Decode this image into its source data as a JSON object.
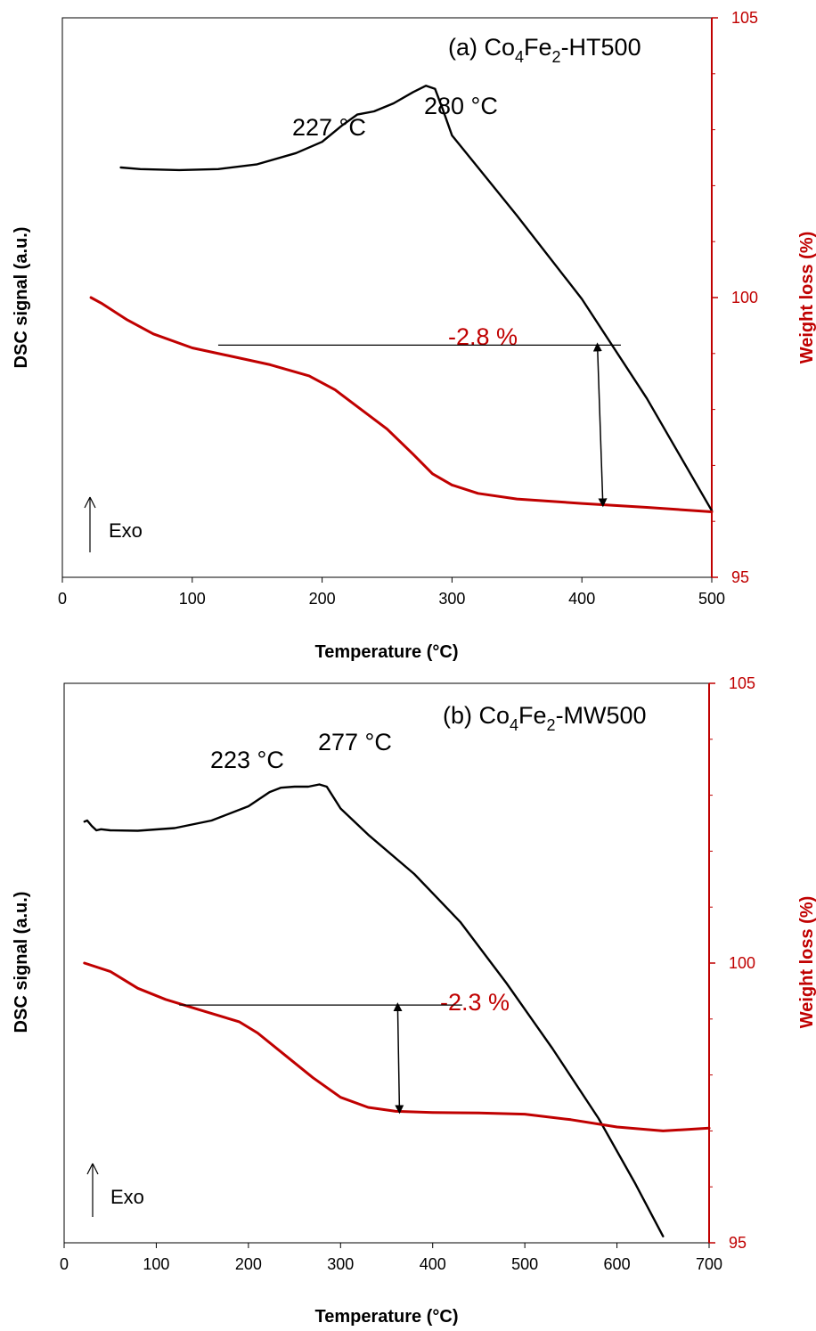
{
  "colors": {
    "dsc": "#000000",
    "weight": "#c00000"
  },
  "chart_data": [
    {
      "type": "line",
      "title": "(a) Co4Fe2-HT500",
      "title_parts": {
        "pre": "(a) Co",
        "sub1": "4",
        "mid": "Fe",
        "sub2": "2",
        "post": "-HT500"
      },
      "xlabel": "Temperature (°C)",
      "ylabel_left": "DSC signal (a.u.)",
      "ylabel_right": "Weight loss (%)",
      "xlim": [
        0,
        500
      ],
      "xticks": [
        "0",
        "100",
        "200",
        "300",
        "400",
        "500"
      ],
      "y2lim": [
        95,
        105
      ],
      "y2ticks": [
        "95",
        "100",
        "105"
      ],
      "exo_label": "Exo",
      "peaks": [
        {
          "label": "227 °C",
          "x": 227
        },
        {
          "label": "280 °C",
          "x": 280
        }
      ],
      "weight_loss_label": "-2.8 %",
      "series": [
        {
          "axis": "left",
          "color": "#000000",
          "x": [
            45,
            60,
            90,
            120,
            150,
            180,
            200,
            215,
            227,
            240,
            255,
            270,
            280,
            287,
            293,
            300,
            320,
            350,
            400,
            450,
            500
          ],
          "y": [
            0.0,
            -0.05,
            -0.08,
            -0.05,
            0.1,
            0.45,
            0.8,
            1.3,
            1.65,
            1.75,
            2.0,
            2.35,
            2.55,
            2.45,
            1.8,
            1.0,
            0.0,
            -1.5,
            -4.1,
            -7.2,
            -10.7
          ]
        },
        {
          "axis": "right",
          "color": "#c00000",
          "x": [
            22,
            30,
            50,
            70,
            100,
            130,
            160,
            190,
            210,
            230,
            250,
            270,
            285,
            300,
            320,
            350,
            400,
            450,
            500
          ],
          "y": [
            100.0,
            99.9,
            99.6,
            99.35,
            99.1,
            98.95,
            98.8,
            98.6,
            98.35,
            98.0,
            97.65,
            97.2,
            96.85,
            96.65,
            96.5,
            96.4,
            96.32,
            96.25,
            96.17
          ]
        }
      ],
      "bracket": {
        "x_start": 120,
        "x_end": 430,
        "y_top": 99.15,
        "arrow_x": 412,
        "y_bottom": 96.3
      }
    },
    {
      "type": "line",
      "title": "(b) Co4Fe2-MW500",
      "title_parts": {
        "pre": "(b) Co",
        "sub1": "4",
        "mid": "Fe",
        "sub2": "2",
        "post": "-MW500"
      },
      "xlabel": "Temperature (°C)",
      "ylabel_left": "DSC signal (a.u.)",
      "ylabel_right": "Weight loss (%)",
      "xlim": [
        0,
        700
      ],
      "xticks": [
        "0",
        "100",
        "200",
        "300",
        "400",
        "500",
        "600",
        "700"
      ],
      "y2lim": [
        95,
        105
      ],
      "y2ticks": [
        "95",
        "100",
        "105"
      ],
      "exo_label": "Exo",
      "peaks": [
        {
          "label": "223 °C",
          "x": 223
        },
        {
          "label": "277 °C",
          "x": 277
        }
      ],
      "weight_loss_label": "-2.3 %",
      "series": [
        {
          "axis": "left",
          "color": "#000000",
          "x": [
            22,
            25,
            30,
            35,
            40,
            50,
            80,
            120,
            160,
            200,
            223,
            235,
            250,
            265,
            277,
            285,
            300,
            330,
            380,
            430,
            480,
            530,
            580,
            620,
            650
          ],
          "y": [
            0.4,
            0.45,
            0.2,
            0.0,
            0.05,
            0.0,
            -0.02,
            0.1,
            0.45,
            1.1,
            1.75,
            1.95,
            2.0,
            2.0,
            2.1,
            2.0,
            1.0,
            -0.2,
            -2.0,
            -4.2,
            -7.0,
            -10.0,
            -13.2,
            -16.2,
            -18.6
          ]
        },
        {
          "axis": "right",
          "color": "#c00000",
          "x": [
            22,
            50,
            80,
            110,
            150,
            190,
            210,
            240,
            270,
            300,
            330,
            360,
            400,
            450,
            500,
            550,
            600,
            650,
            700
          ],
          "y": [
            100.0,
            99.85,
            99.55,
            99.35,
            99.15,
            98.95,
            98.75,
            98.35,
            97.95,
            97.6,
            97.42,
            97.35,
            97.33,
            97.32,
            97.3,
            97.2,
            97.07,
            97.0,
            97.05
          ]
        }
      ],
      "bracket": {
        "x_start": 125,
        "x_end": 432,
        "y_top": 99.25,
        "arrow_x": 362,
        "y_bottom": 97.35
      }
    }
  ]
}
